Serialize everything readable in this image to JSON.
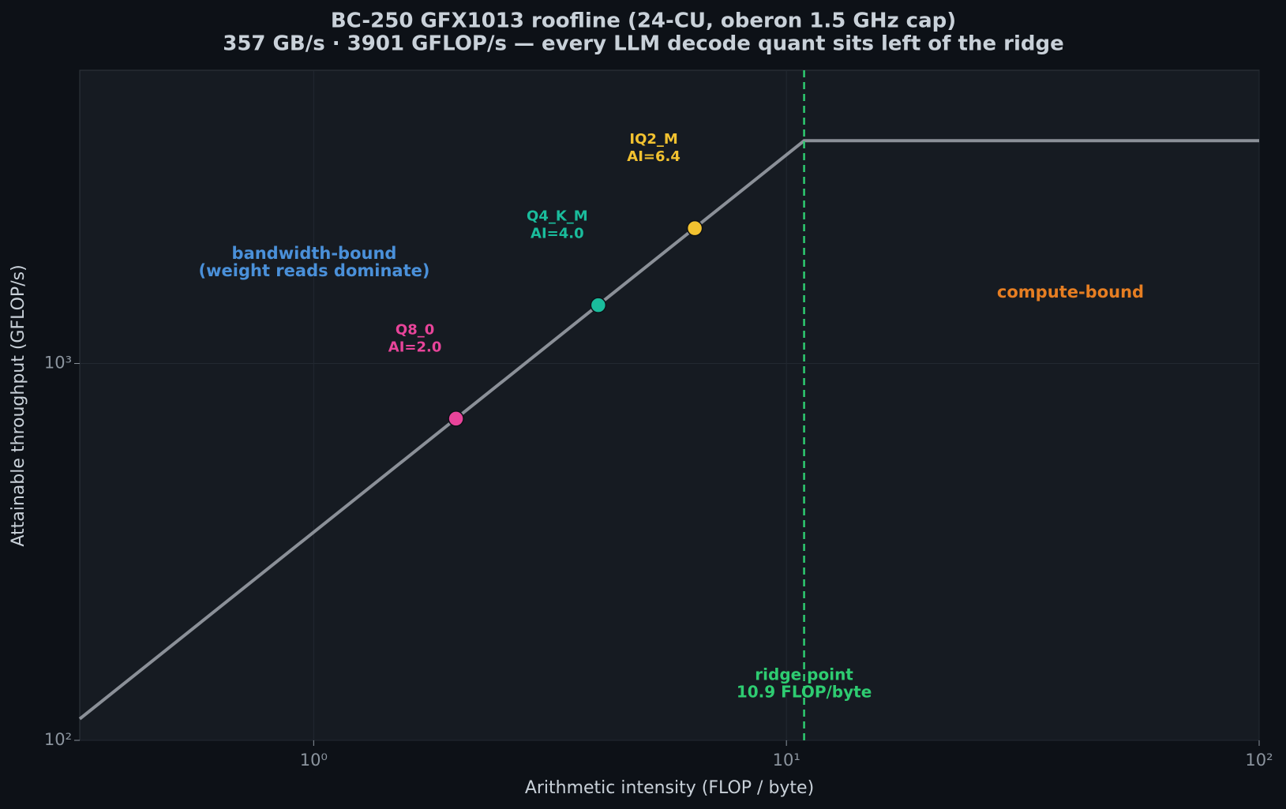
{
  "chart_data": {
    "type": "roofline",
    "title": "BC-250 GFX1013 roofline (24-CU, oberon 1.5 GHz cap)",
    "subtitle": "357 GB/s · 3901 GFLOP/s — every LLM decode quant sits left of the ridge",
    "xlabel": "Arithmetic intensity (FLOP / byte)",
    "ylabel": "Attainable throughput (GFLOP/s)",
    "log_x": true,
    "log_y": true,
    "xlim": [
      0.32,
      100
    ],
    "ylim": [
      100,
      6000
    ],
    "xticks": [
      {
        "value": 1,
        "label": "10⁰"
      },
      {
        "value": 10,
        "label": "10¹"
      },
      {
        "value": 100,
        "label": "10²"
      }
    ],
    "yticks": [
      {
        "value": 100,
        "label": "10²"
      },
      {
        "value": 1000,
        "label": "10³"
      }
    ],
    "grid": true,
    "roof": {
      "color": "#8b9098",
      "x": [
        0.32,
        10.9,
        100
      ],
      "values": [
        114,
        3901,
        3901
      ]
    },
    "points": [
      {
        "label": "Q8_0",
        "annotation": "AI=2.0",
        "x": 2.0,
        "y": 714,
        "color": "#e8449a"
      },
      {
        "label": "Q4_K_M",
        "annotation": "AI=4.0",
        "x": 4.0,
        "y": 1428,
        "color": "#1abc9c"
      },
      {
        "label": "IQ2_M",
        "annotation": "AI=6.4",
        "x": 6.4,
        "y": 2285,
        "color": "#f2c230"
      }
    ],
    "ridge": {
      "x": 10.9,
      "label": "ridge point",
      "sublabel": "10.9 FLOP/byte",
      "color": "#2ecc71"
    },
    "regions": [
      {
        "text": "bandwidth-bound",
        "subtext": "(weight reads dominate)",
        "color": "#4a90d9"
      },
      {
        "text": "compute-bound",
        "color": "#e67e22"
      }
    ]
  }
}
